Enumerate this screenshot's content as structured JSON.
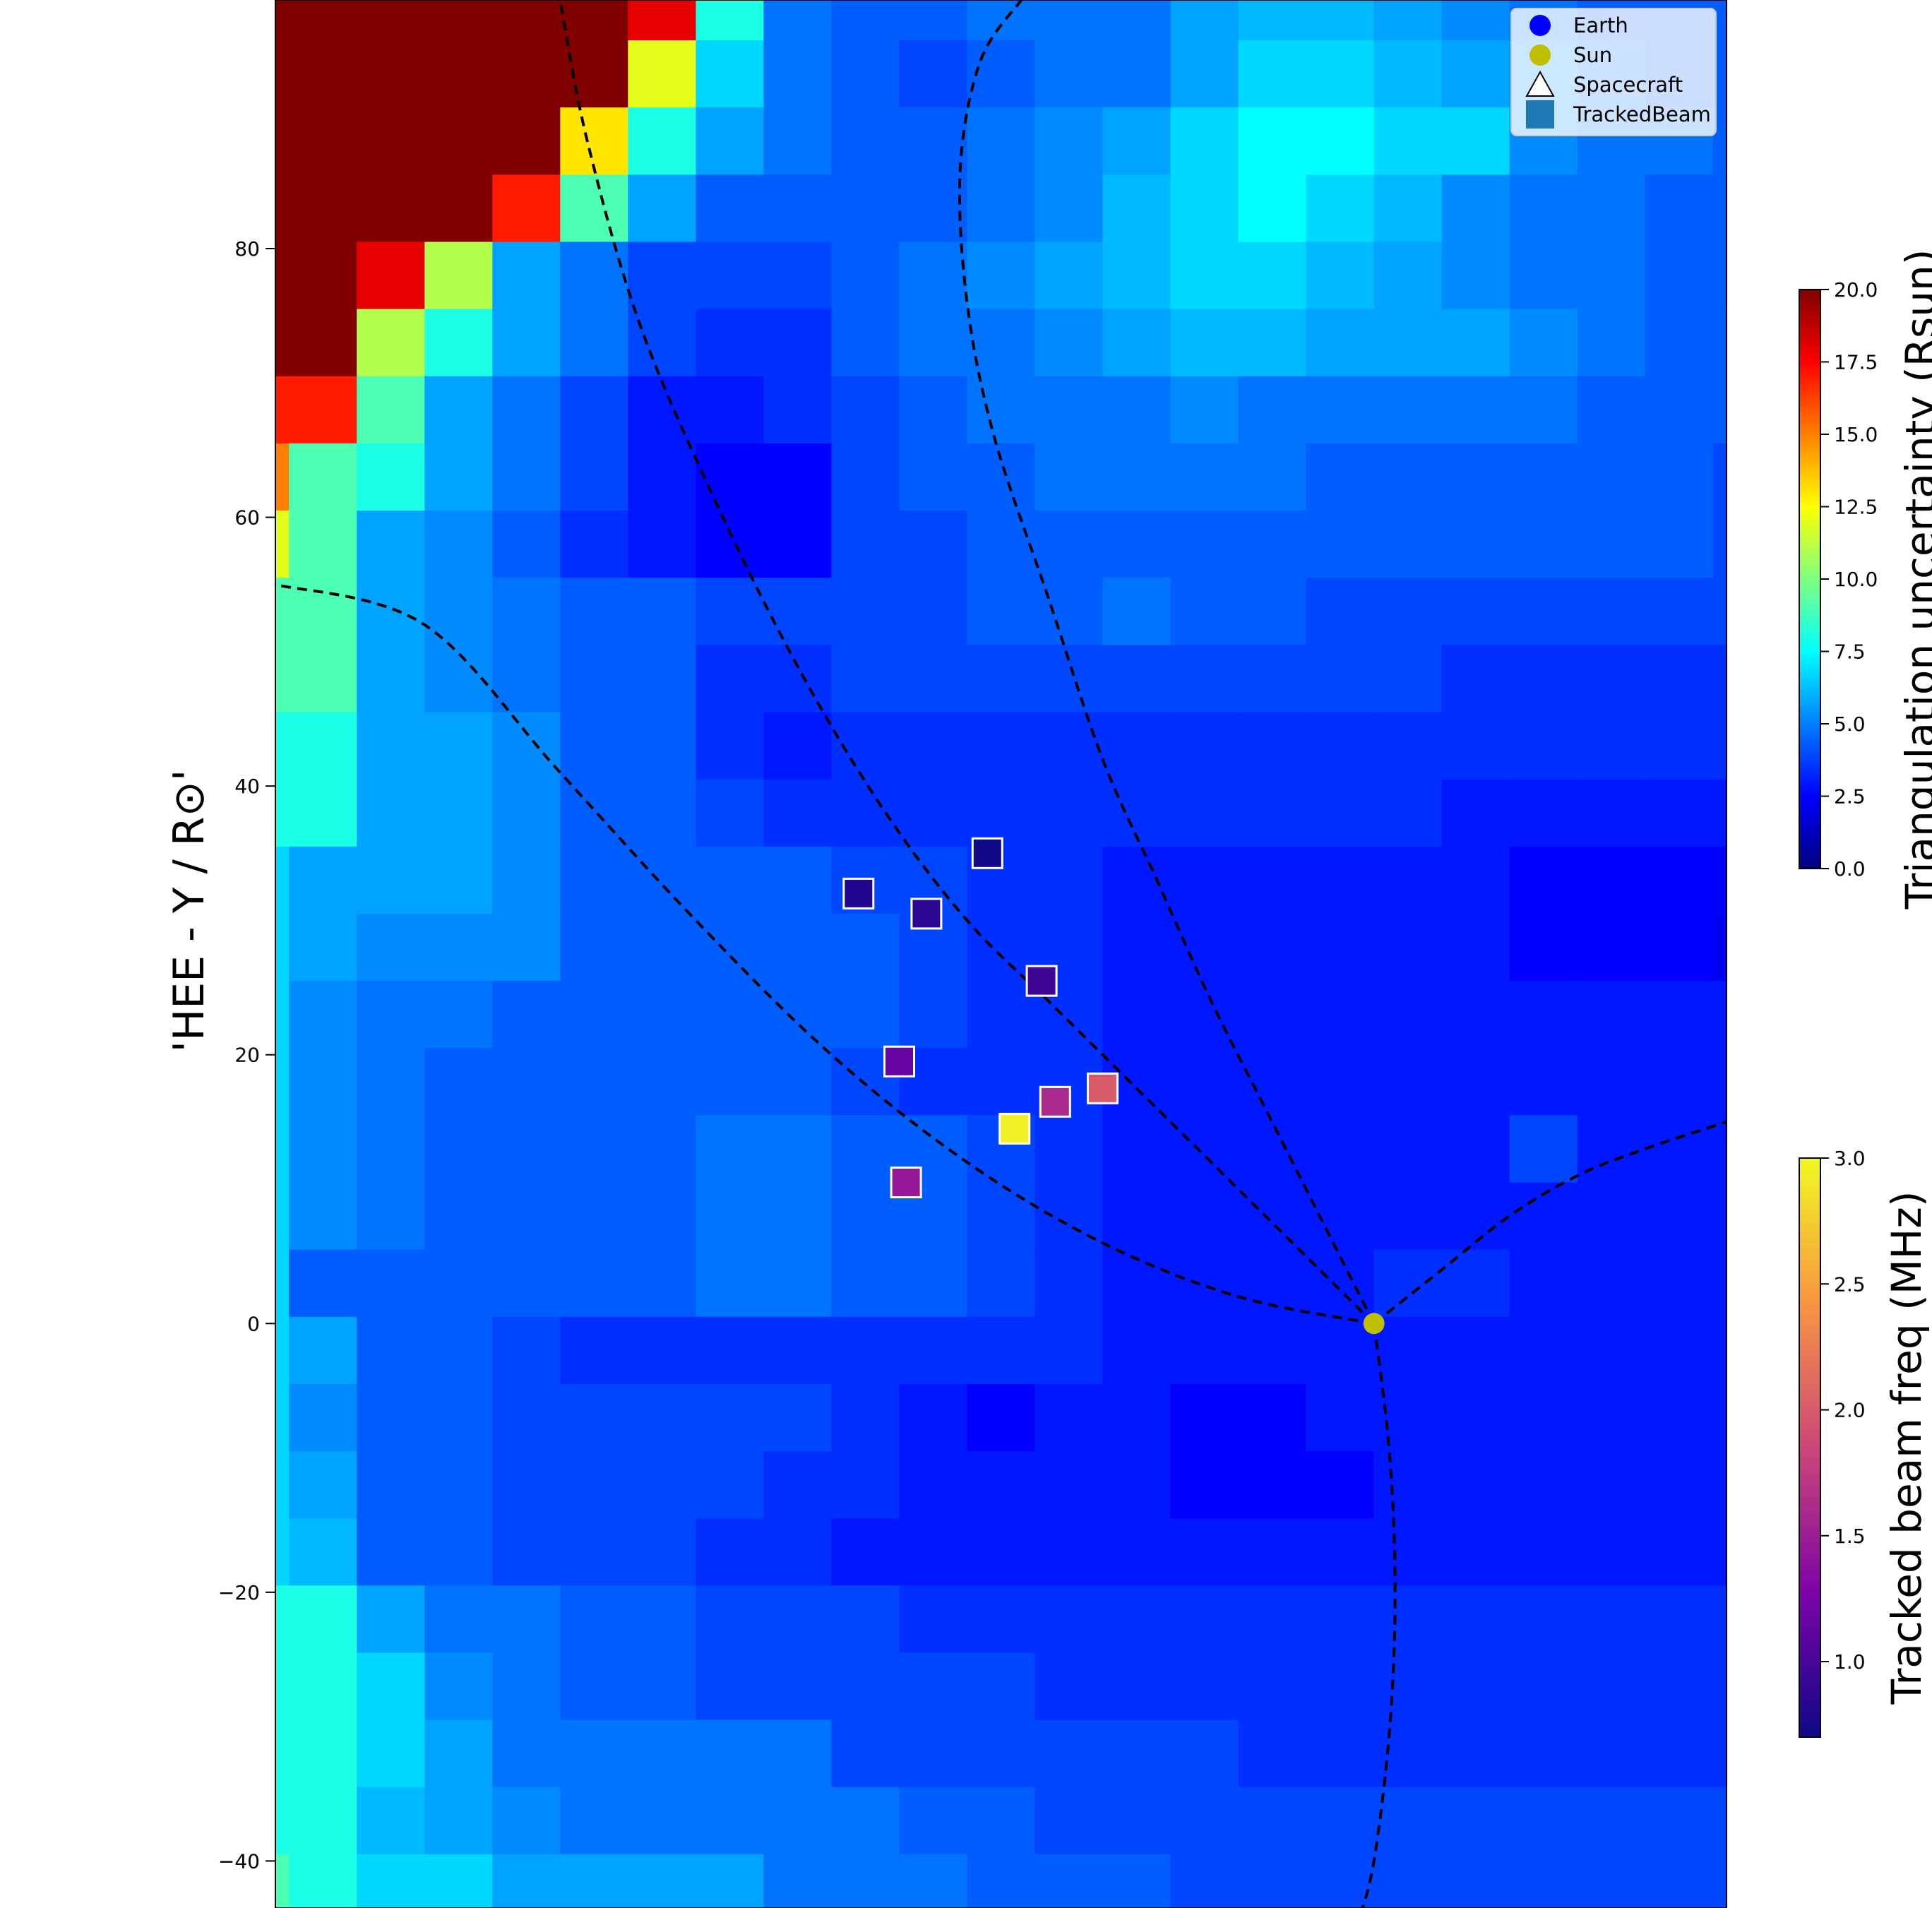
{
  "chart_data": {
    "type": "heatmap",
    "ylabel": "'HEE - Y / R⊙'",
    "yticks": [
      80,
      60,
      40,
      20,
      0,
      -20,
      -40
    ],
    "ylim": [
      -43.5,
      98.5
    ],
    "xlim": [
      -81,
      26
    ],
    "grid": false,
    "legend_position": "top-right",
    "legend": [
      {
        "label": "Earth",
        "marker": "circle",
        "color": "#0000ff"
      },
      {
        "label": "Sun",
        "marker": "circle",
        "color": "#bfbf00"
      },
      {
        "label": "Spacecraft",
        "marker": "triangle",
        "color": "#ffffff"
      },
      {
        "label": "TrackedBeam",
        "marker": "square",
        "color": "#1f77b4"
      }
    ],
    "uncertainty_colorbar": {
      "label": "Triangulation uncertainty (Rsun)",
      "ticks": [
        "0.0",
        "2.5",
        "5.0",
        "7.5",
        "10.0",
        "12.5",
        "15.0",
        "17.5",
        "20.0"
      ],
      "range": [
        0,
        20
      ],
      "colormap": "jet"
    },
    "freq_colorbar": {
      "label": "Tracked beam freq (MHz)",
      "ticks": [
        "1.0",
        "1.5",
        "2.0",
        "2.5",
        "3.0"
      ],
      "range": [
        0.7,
        3.0
      ],
      "colormap": "plasma"
    },
    "sun": {
      "x": 0,
      "y": 0,
      "color": "#bfbf00"
    },
    "tracked_beams": [
      {
        "x": -38,
        "y": 32,
        "freq": 0.8
      },
      {
        "x": -33,
        "y": 30.5,
        "freq": 0.85
      },
      {
        "x": -28.5,
        "y": 35,
        "freq": 0.72
      },
      {
        "x": -24.5,
        "y": 25.5,
        "freq": 0.95
      },
      {
        "x": -35,
        "y": 19.5,
        "freq": 1.15
      },
      {
        "x": -23.5,
        "y": 16.5,
        "freq": 1.6
      },
      {
        "x": -20,
        "y": 17.5,
        "freq": 2.0
      },
      {
        "x": -26.5,
        "y": 14.5,
        "freq": 2.95
      },
      {
        "x": -34.5,
        "y": 10.5,
        "freq": 1.45
      }
    ],
    "grid_x_edges": [
      -81,
      -80,
      -75,
      -70,
      -65,
      -60,
      -55,
      -50,
      -45,
      -40,
      -35,
      -30,
      -25,
      -20,
      -15,
      -10,
      -5,
      0,
      5,
      10,
      15,
      20,
      25,
      26
    ],
    "grid_y_edges": [
      98.5,
      95.5,
      90.5,
      85.5,
      80.5,
      75.5,
      70.5,
      65.5,
      60.5,
      55.5,
      50.5,
      45.5,
      40.5,
      35.5,
      30.5,
      25.5,
      20.5,
      15.5,
      10.5,
      5.5,
      0.5,
      -4.5,
      -9.5,
      -14.5,
      -19.5,
      -24.5,
      -29.5,
      -34.5,
      -39.5,
      -43.5
    ],
    "uncertainty": [
      [
        20,
        20,
        20,
        20,
        20,
        20,
        18,
        8,
        5,
        4.5,
        4.5,
        5,
        5,
        5,
        6,
        6.5,
        6.5,
        6,
        5.5,
        5,
        4.5,
        4.5,
        4.5
      ],
      [
        20,
        20,
        20,
        20,
        20,
        20,
        12,
        7,
        5,
        4.5,
        4,
        4.5,
        5,
        5,
        6,
        7,
        7,
        6.5,
        6,
        5.5,
        5,
        4.5,
        4.5
      ],
      [
        20,
        20,
        20,
        20,
        20,
        13,
        8,
        6,
        5,
        4.5,
        4.5,
        5,
        5.5,
        6,
        7,
        7.5,
        7.5,
        7,
        7,
        5.5,
        5,
        5,
        4.5
      ],
      [
        20,
        20,
        20,
        20,
        17,
        9,
        6,
        4.5,
        4.5,
        4.5,
        4.5,
        5,
        5.5,
        6.5,
        7,
        7.5,
        7,
        6.5,
        5.5,
        5,
        5,
        4.5,
        4.5
      ],
      [
        20,
        20,
        18,
        11,
        6,
        5,
        4,
        4,
        4,
        4.5,
        5,
        5.5,
        6,
        6.5,
        7,
        7,
        6.5,
        6,
        5.5,
        5,
        5,
        4.5,
        4.5
      ],
      [
        20,
        20,
        11,
        8,
        6,
        5,
        4,
        3.5,
        3.5,
        4.5,
        5,
        5,
        5.5,
        6,
        6.5,
        6.5,
        6,
        6,
        6,
        5.5,
        5,
        4.5,
        4.5
      ],
      [
        17,
        17,
        9,
        6,
        5,
        4,
        3,
        3,
        3.5,
        4,
        4.5,
        5,
        5,
        5,
        5.5,
        5,
        5,
        5,
        5,
        5,
        4.5,
        4.5,
        4.5
      ],
      [
        15,
        9,
        8,
        6,
        5,
        4,
        3,
        2.5,
        2.5,
        4,
        4.5,
        4.5,
        5,
        5,
        5,
        5,
        4.5,
        4.5,
        4.5,
        4.5,
        4.5,
        4.5,
        4
      ],
      [
        12,
        9,
        6,
        5.5,
        4.5,
        3.5,
        3,
        2.5,
        2.5,
        4,
        4,
        4.5,
        4.5,
        4.5,
        4.5,
        4.5,
        4.5,
        4.5,
        4.5,
        4.5,
        4.5,
        4.5,
        4
      ],
      [
        9,
        9,
        6,
        5.5,
        5,
        4.5,
        4.5,
        4,
        4,
        4,
        4,
        4.5,
        4.5,
        5,
        4.5,
        4.5,
        4,
        4,
        4,
        4,
        4,
        4,
        4
      ],
      [
        9,
        9,
        6,
        5.5,
        5,
        4.5,
        4.5,
        3.5,
        3.5,
        4,
        4,
        4,
        4,
        4,
        4,
        4,
        4,
        4,
        3.5,
        3.5,
        3.5,
        3.5,
        3.5
      ],
      [
        8,
        8,
        6,
        6,
        5.5,
        4.5,
        4.5,
        3.5,
        3,
        3.5,
        3.5,
        3.5,
        3.5,
        3.5,
        3.5,
        3.5,
        3.5,
        3.5,
        3.5,
        3.5,
        3.5,
        3.5,
        3.5
      ],
      [
        8,
        8,
        6,
        6,
        5.5,
        4.5,
        4.5,
        4,
        3.5,
        3.5,
        3.5,
        3.5,
        3.5,
        3.5,
        3.5,
        3.5,
        3.5,
        3.5,
        3,
        3,
        3,
        3,
        3
      ],
      [
        7,
        6,
        6,
        6,
        5.5,
        4.5,
        4.5,
        4.5,
        4.5,
        4,
        4,
        3.5,
        3.5,
        3,
        3,
        3,
        3,
        3,
        3,
        2.5,
        2.5,
        2.5,
        2.5
      ],
      [
        7,
        6,
        5.5,
        5.5,
        5.5,
        4.5,
        4.5,
        4.5,
        4.5,
        4.5,
        4,
        3.5,
        3.5,
        3,
        3,
        3,
        3,
        3,
        3,
        2.5,
        2.5,
        2.5,
        2
      ],
      [
        7,
        5.5,
        5,
        5,
        4.5,
        4.5,
        4.5,
        4.5,
        4.5,
        4.5,
        4,
        3.5,
        3.5,
        3,
        3,
        3,
        3,
        3,
        3,
        3,
        3,
        3,
        3
      ],
      [
        7,
        5.5,
        5,
        4.5,
        4.5,
        4.5,
        4.5,
        4.5,
        4.5,
        4,
        3.5,
        3.5,
        3.5,
        3,
        3,
        3,
        3,
        3,
        3,
        3,
        3,
        3,
        3
      ],
      [
        7,
        5.5,
        5,
        4.5,
        4.5,
        4.5,
        4.5,
        5,
        5,
        4.5,
        4.5,
        4,
        3.5,
        3,
        3,
        3,
        3,
        3,
        3,
        4,
        3,
        3,
        3
      ],
      [
        7,
        5.5,
        5,
        4.5,
        4.5,
        4.5,
        4.5,
        5,
        5,
        4.5,
        4.5,
        4,
        3.5,
        3,
        3,
        3,
        3,
        3,
        3,
        3,
        3,
        3,
        3
      ],
      [
        7,
        4.5,
        4.5,
        4.5,
        4.5,
        4.5,
        4.5,
        5,
        5,
        4.5,
        4.5,
        4,
        3.5,
        3,
        3,
        3,
        3,
        3.5,
        3.5,
        3,
        3,
        3,
        3
      ],
      [
        7,
        6,
        4.5,
        4.5,
        4,
        3.5,
        3.5,
        3.5,
        3.5,
        3.5,
        3.5,
        3.5,
        3.5,
        3,
        3,
        3,
        3,
        3,
        3,
        3,
        3,
        3,
        3
      ],
      [
        7,
        5.5,
        4.5,
        4.5,
        4,
        4,
        4,
        4,
        4,
        3.5,
        3,
        2.5,
        3,
        3,
        2.5,
        2.5,
        3,
        3,
        3,
        3,
        3,
        3,
        3
      ],
      [
        7,
        6,
        4.5,
        4.5,
        4,
        4,
        4,
        4,
        3.5,
        3.5,
        3,
        3,
        3,
        3,
        2.5,
        2.5,
        2.5,
        3,
        3,
        3,
        3,
        3,
        3
      ],
      [
        7,
        6.5,
        4.5,
        4.5,
        4,
        4,
        4,
        3.5,
        3.5,
        3,
        3,
        3,
        3,
        3,
        3,
        3,
        3,
        3,
        3,
        3,
        3,
        3,
        3
      ],
      [
        8,
        8,
        6,
        5,
        5,
        4.5,
        4.5,
        4,
        4,
        4,
        3.5,
        3.5,
        3.5,
        3.5,
        3.5,
        3.5,
        3.5,
        3.5,
        3.5,
        3.5,
        3.5,
        3.5,
        3.5
      ],
      [
        8,
        8,
        7,
        5.5,
        5,
        4.5,
        4.5,
        4,
        4,
        4,
        4,
        4,
        3.5,
        3.5,
        3.5,
        3.5,
        3.5,
        3.5,
        3.5,
        3.5,
        3.5,
        3.5,
        3.5
      ],
      [
        8,
        8,
        7,
        6,
        5,
        5,
        5,
        5,
        5,
        4,
        4,
        4,
        4,
        4,
        4,
        3.5,
        3.5,
        3.5,
        3.5,
        3.5,
        3.5,
        3.5,
        3.5
      ],
      [
        8,
        8,
        6.5,
        6,
        5.5,
        5,
        5,
        5,
        5,
        5,
        4.5,
        4.5,
        4,
        4,
        4,
        4,
        4,
        4,
        4,
        4,
        4,
        4,
        4
      ],
      [
        9,
        8,
        7,
        7,
        6,
        6,
        6,
        6,
        5,
        5,
        5,
        4.5,
        4.5,
        4.5,
        4,
        4,
        4,
        4,
        4,
        4,
        4,
        4,
        4
      ]
    ],
    "field_lines": [
      {
        "x": [
          0,
          -10,
          -20,
          -30,
          -40,
          -50,
          -60,
          -70,
          -81
        ],
        "y": [
          0,
          2,
          6,
          12,
          20,
          30,
          41,
          52,
          55
        ]
      },
      {
        "x": [
          0,
          -6,
          -12,
          -18,
          -24,
          -30,
          -36,
          -42,
          -48,
          -54,
          -58,
          -60
        ],
        "y": [
          0,
          6,
          12,
          18,
          24,
          30,
          38,
          48,
          60,
          74,
          88,
          98.5
        ]
      },
      {
        "x": [
          0,
          -4,
          -8,
          -12,
          -16,
          -20,
          -24,
          -28,
          -30,
          -30.5,
          -29,
          -26
        ],
        "y": [
          0,
          8,
          16,
          24,
          33,
          42,
          54,
          66,
          76,
          86,
          94,
          98.5
        ]
      },
      {
        "x": [
          0,
          1,
          1.5,
          1.5,
          1,
          0,
          -1,
          -2
        ],
        "y": [
          0,
          -8,
          -16,
          -24,
          -32,
          -40,
          -44,
          -46
        ]
      },
      {
        "x": [
          0,
          5,
          10,
          15,
          20,
          26
        ],
        "y": [
          0,
          4,
          8,
          11,
          13,
          15
        ]
      }
    ]
  }
}
